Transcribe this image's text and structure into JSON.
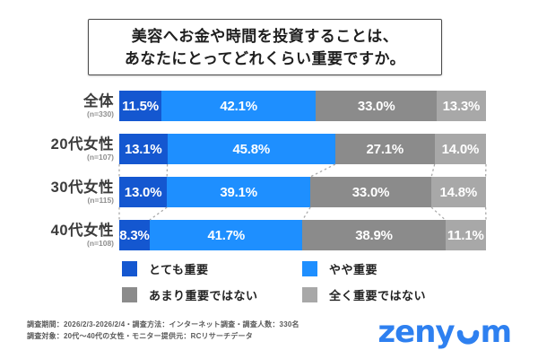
{
  "title": {
    "line1": "美容へお金や時間を投資することは、",
    "line2": "あなたにとってどれくらい重要ですか。"
  },
  "chart_data": {
    "type": "bar",
    "orientation": "horizontal",
    "stacked": true,
    "value_unit": "%",
    "xlim": [
      0,
      100
    ],
    "grid": false,
    "legend_position": "bottom",
    "categories": [
      "全体",
      "20代女性",
      "30代女性",
      "40代女性"
    ],
    "sample_sizes": [
      "(n=330)",
      "(n=107)",
      "(n=115)",
      "(n=108)"
    ],
    "series": [
      {
        "name": "とても重要",
        "color": "#1457d0",
        "values": [
          11.5,
          13.1,
          13.0,
          8.3
        ]
      },
      {
        "name": "やや重要",
        "color": "#1e8fff",
        "values": [
          42.1,
          45.8,
          39.1,
          41.7
        ]
      },
      {
        "name": "あまり重要ではない",
        "color": "#8b8b8b",
        "values": [
          33.0,
          27.1,
          33.0,
          38.9
        ]
      },
      {
        "name": "全く重要ではない",
        "color": "#a8a8a8",
        "values": [
          13.3,
          14.0,
          14.8,
          11.1
        ]
      }
    ],
    "connector_pairs": [
      [
        1,
        2
      ],
      [
        2,
        3
      ]
    ],
    "connector_color": "#aaaaaa"
  },
  "footer": {
    "line1": "調査期間：2026/2/3-2026/2/4・調査方法：インターネット調査・調査人数：330名",
    "line2": "調査対象：20代～40代の女性・モニター提供元：RCリサーチデータ"
  },
  "logo": {
    "text": "zenyum",
    "color": "#2e80f0"
  }
}
